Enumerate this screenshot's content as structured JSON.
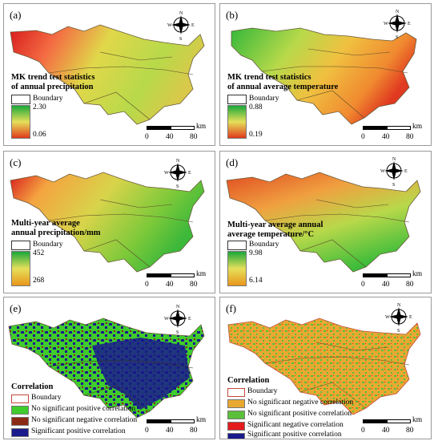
{
  "panels": [
    {
      "label": "(a)",
      "title1": "MK trend test statistics",
      "title2": "of annual precipitation",
      "boundary": "Boundary",
      "max": "2.30",
      "min": "0.06"
    },
    {
      "label": "(b)",
      "title1": "MK trend test statistics",
      "title2": "of annual average temperature",
      "boundary": "Boundary",
      "max": "0.88",
      "min": "0.19"
    },
    {
      "label": "(c)",
      "title1": "Multi-year average",
      "title2": "annual precipitation/mm",
      "boundary": "Boundary",
      "max": "452",
      "min": "268"
    },
    {
      "label": "(d)",
      "title1": "Multi-year average annual",
      "title2": "average temperature/°C",
      "boundary": "Boundary",
      "max": "9.98",
      "min": "6.14"
    },
    {
      "label": "(e)",
      "title1": "Correlation",
      "boundary": "Boundary",
      "items": [
        "No significant positive correlation",
        "No significant negative correlation",
        "Significant positive correlation"
      ]
    },
    {
      "label": "(f)",
      "title1": "Correlation",
      "boundary": "Boundary",
      "items": [
        "No significant negative correlation",
        "No significant positive correlation",
        "Significant negative correlation",
        "Significant positive correlation"
      ]
    }
  ],
  "scale": {
    "unit": "km",
    "ticks": [
      "0",
      "40",
      "80"
    ]
  },
  "compass": {
    "n": "N",
    "s": "S",
    "e": "E",
    "w": "W"
  },
  "colors": {
    "ramp_red": "#d7191c",
    "ramp_orange": "#fdae61",
    "ramp_yellow": "#e6e05a",
    "ramp_green": "#1a9e3f",
    "sig_pos": "#1a1a8c",
    "nosig_pos": "#3fcc2c",
    "nosig_neg": "#8b2a14",
    "sig_neg": "#e41a1c",
    "nosig_neg_f": "#e8a832"
  }
}
